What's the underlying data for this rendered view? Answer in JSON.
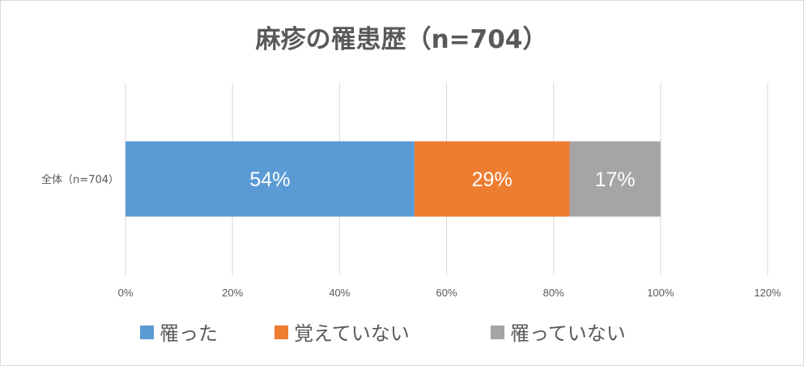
{
  "chart_data": {
    "type": "bar",
    "orientation": "horizontal",
    "stacked": true,
    "title": "麻疹の罹患歴（n=704）",
    "categories": [
      "全体（n=704）"
    ],
    "series": [
      {
        "name": "罹った",
        "values": [
          54
        ],
        "label": "54%",
        "color": "#5b9bd5"
      },
      {
        "name": "覚えていない",
        "values": [
          29
        ],
        "label": "29%",
        "color": "#ed7d31"
      },
      {
        "name": "罹っていない",
        "values": [
          17
        ],
        "label": "17%",
        "color": "#a5a5a5"
      }
    ],
    "xlim": [
      0,
      120
    ],
    "xticks": [
      "0%",
      "20%",
      "40%",
      "60%",
      "80%",
      "100%",
      "120%"
    ],
    "grid": true,
    "legend": "bottom"
  }
}
